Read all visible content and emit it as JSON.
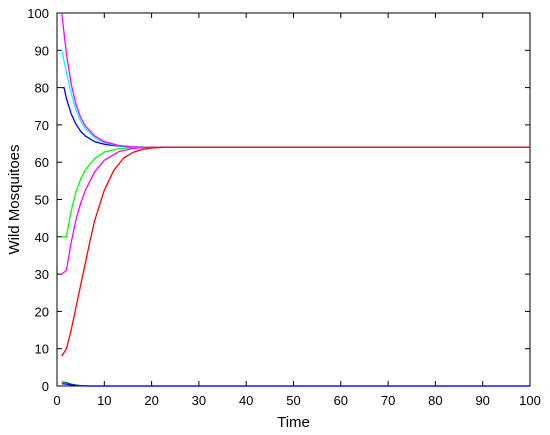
{
  "chart_data": {
    "type": "line",
    "title": "",
    "xlabel": "Time",
    "ylabel": "Wild Mosquitoes",
    "xlim": [
      0,
      100
    ],
    "ylim": [
      0,
      100
    ],
    "xticks": [
      0,
      10,
      20,
      30,
      40,
      50,
      60,
      70,
      80,
      90,
      100
    ],
    "yticks": [
      0,
      10,
      20,
      30,
      40,
      50,
      60,
      70,
      80,
      90,
      100
    ],
    "grid": false,
    "legend": "none",
    "equilibrium": 64,
    "series": [
      {
        "color": "#0000ff",
        "points": [
          [
            1,
            80
          ],
          [
            1.5,
            80
          ],
          [
            2,
            77
          ],
          [
            3,
            73
          ],
          [
            4,
            70.2
          ],
          [
            5,
            68.3
          ],
          [
            6,
            67
          ],
          [
            8,
            65.5
          ],
          [
            10,
            64.8
          ],
          [
            13,
            64.3
          ],
          [
            16,
            64.1
          ],
          [
            20,
            64
          ],
          [
            100,
            64
          ]
        ]
      },
      {
        "color": "#00ffff",
        "points": [
          [
            1,
            90
          ],
          [
            2,
            84
          ],
          [
            3,
            78.5
          ],
          [
            4,
            74
          ],
          [
            5,
            71
          ],
          [
            6,
            69
          ],
          [
            8,
            66.5
          ],
          [
            10,
            65.2
          ],
          [
            13,
            64.4
          ],
          [
            16,
            64.1
          ],
          [
            20,
            64
          ],
          [
            100,
            64
          ]
        ]
      },
      {
        "color": "#ff00ff",
        "points": [
          [
            1,
            100
          ],
          [
            2,
            89
          ],
          [
            3,
            81
          ],
          [
            4,
            75.5
          ],
          [
            5,
            72
          ],
          [
            6,
            69.7
          ],
          [
            8,
            67
          ],
          [
            10,
            65.5
          ],
          [
            13,
            64.5
          ],
          [
            16,
            64.1
          ],
          [
            20,
            64
          ],
          [
            100,
            64
          ]
        ]
      },
      {
        "color": "#00ff00",
        "points": [
          [
            1,
            40
          ],
          [
            2,
            40
          ],
          [
            3,
            47
          ],
          [
            4,
            52
          ],
          [
            5,
            55.5
          ],
          [
            6,
            58
          ],
          [
            8,
            61
          ],
          [
            10,
            62.7
          ],
          [
            13,
            63.6
          ],
          [
            16,
            63.9
          ],
          [
            20,
            64
          ],
          [
            100,
            64
          ]
        ]
      },
      {
        "color": "#ff00ff",
        "points": [
          [
            1,
            30
          ],
          [
            2,
            31
          ],
          [
            3,
            38.5
          ],
          [
            4,
            44.5
          ],
          [
            5,
            49
          ],
          [
            6,
            52.5
          ],
          [
            8,
            57.5
          ],
          [
            10,
            60.5
          ],
          [
            13,
            62.8
          ],
          [
            16,
            63.7
          ],
          [
            20,
            64
          ],
          [
            100,
            64
          ]
        ]
      },
      {
        "color": "#ff0000",
        "points": [
          [
            1,
            8
          ],
          [
            2,
            10
          ],
          [
            3,
            15
          ],
          [
            4,
            21
          ],
          [
            5,
            27
          ],
          [
            6,
            33
          ],
          [
            7,
            39
          ],
          [
            8,
            44.5
          ],
          [
            10,
            52.5
          ],
          [
            12,
            57.8
          ],
          [
            14,
            61
          ],
          [
            16,
            62.6
          ],
          [
            18,
            63.4
          ],
          [
            20,
            63.8
          ],
          [
            23,
            64
          ],
          [
            100,
            64
          ]
        ]
      },
      {
        "color": "#008000",
        "points": [
          [
            1,
            1.1
          ],
          [
            2,
            0.9
          ],
          [
            3,
            0.5
          ],
          [
            4,
            0.25
          ],
          [
            5,
            0.1
          ],
          [
            7,
            0
          ],
          [
            100,
            0
          ]
        ]
      },
      {
        "color": "#0000ff",
        "points": [
          [
            1,
            0.6
          ],
          [
            2,
            0.5
          ],
          [
            3,
            0.3
          ],
          [
            4,
            0.15
          ],
          [
            5,
            0.05
          ],
          [
            7,
            0
          ],
          [
            100,
            0
          ]
        ]
      }
    ]
  }
}
